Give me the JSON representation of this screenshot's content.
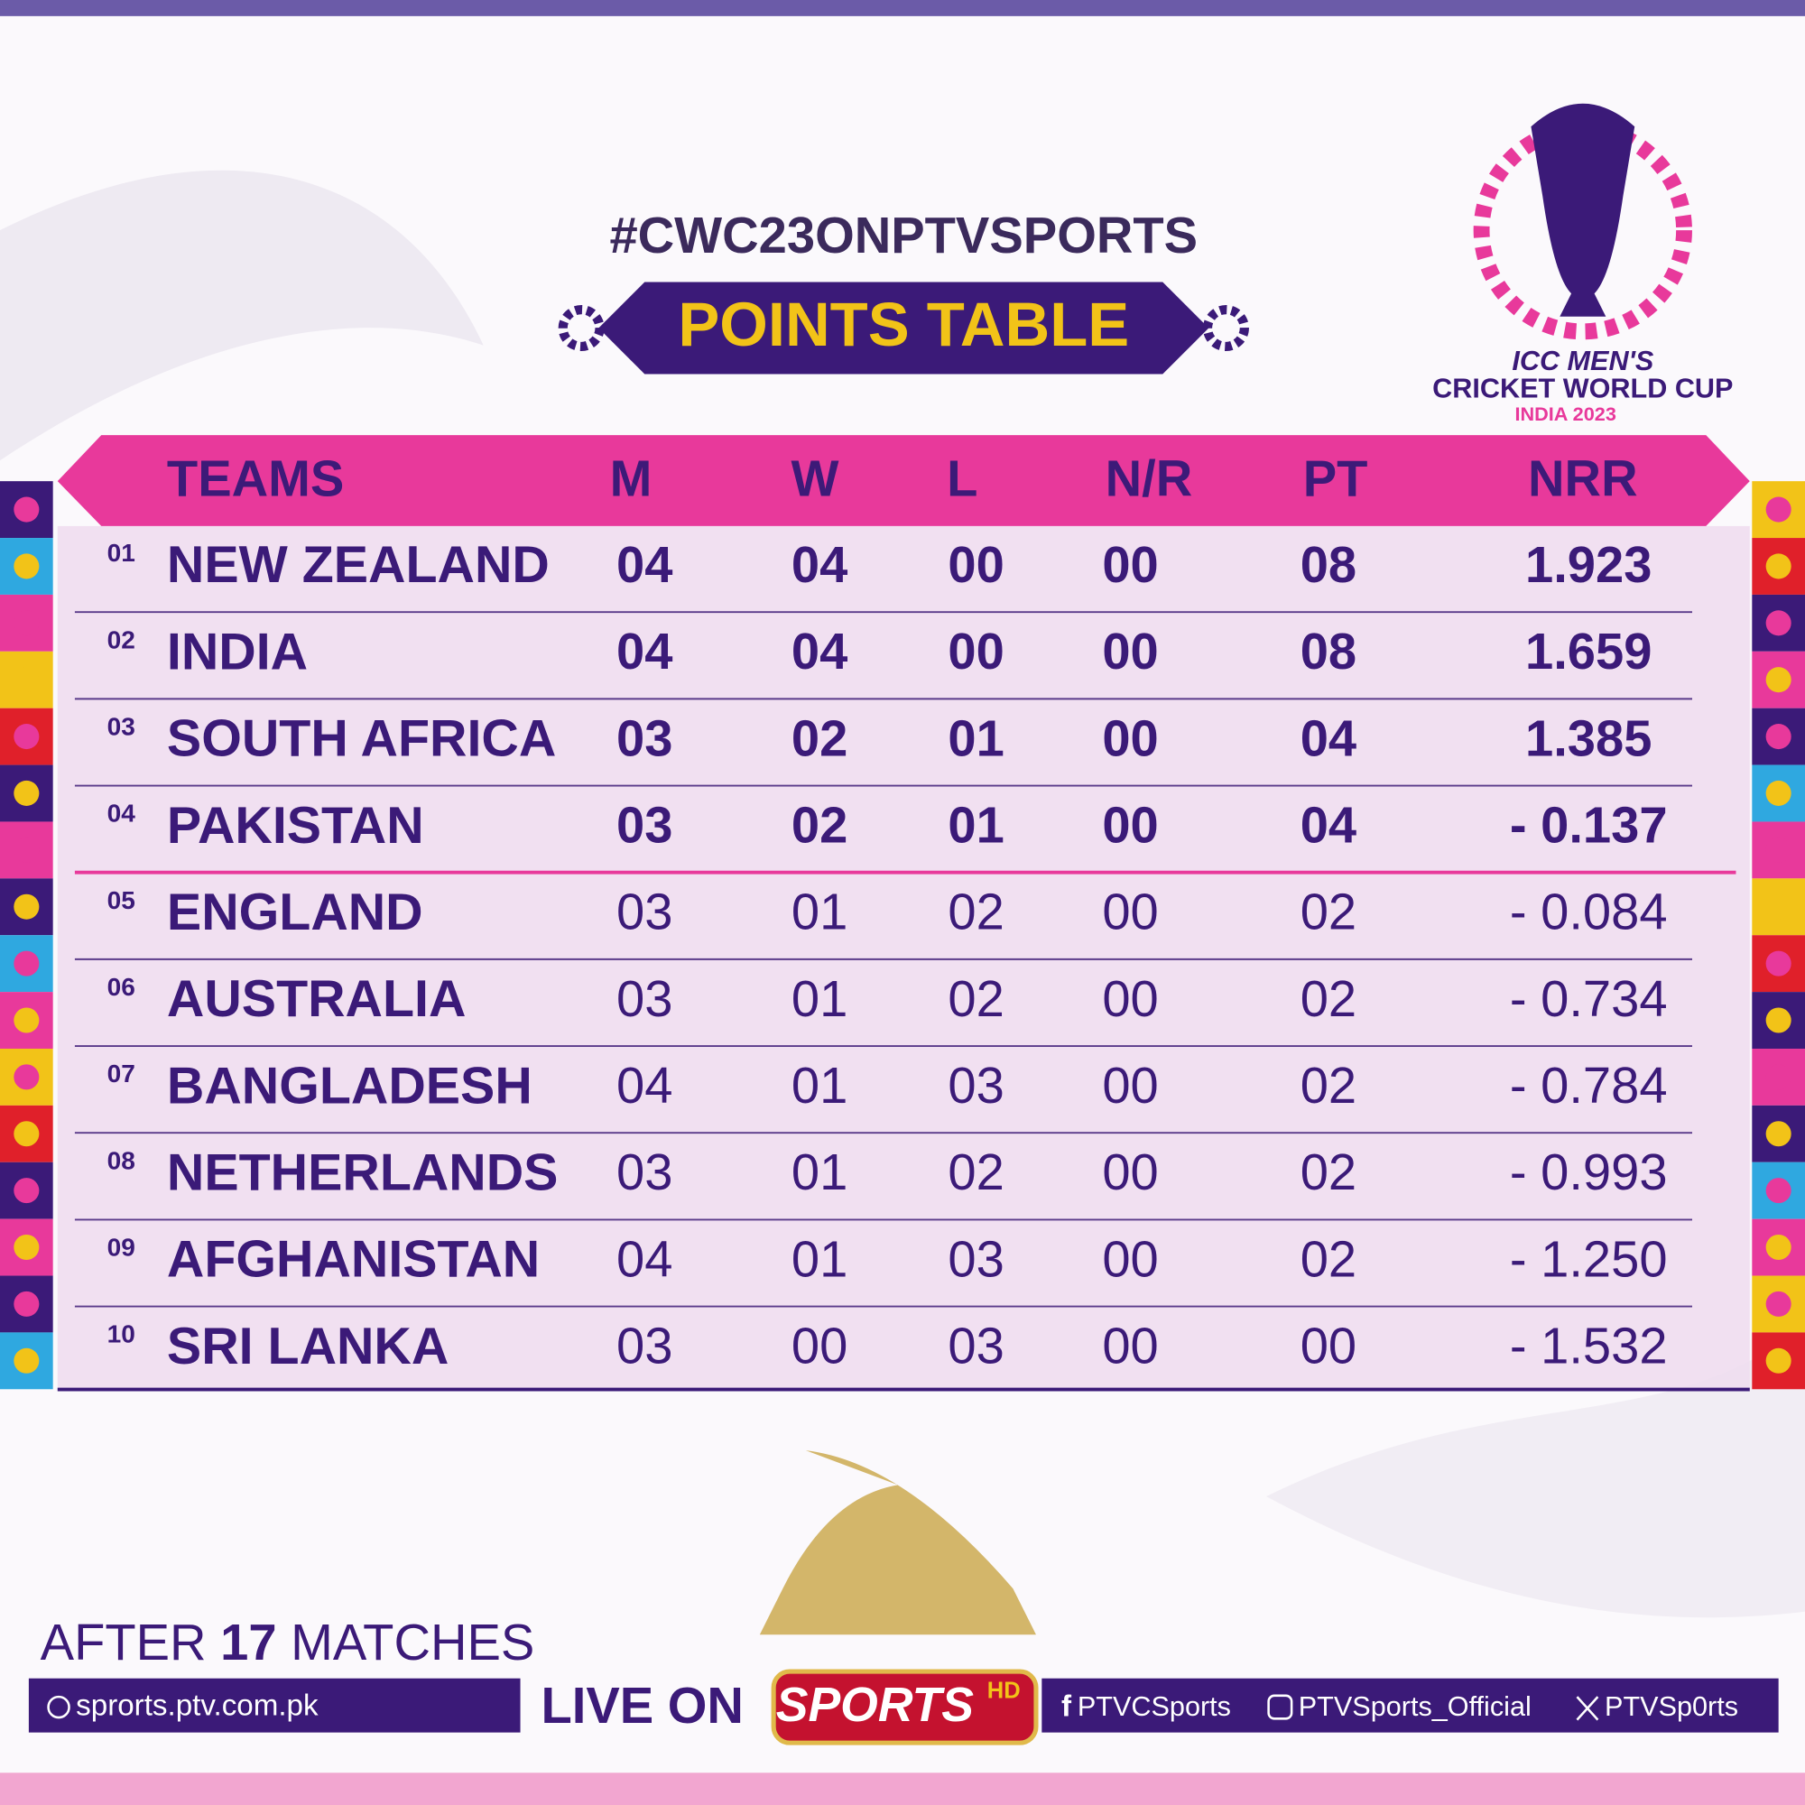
{
  "hashtag": "#CWC23ONPTVSPORTS",
  "title": "POINTS TABLE",
  "logo": {
    "line1": "ICC MEN'S",
    "line2": "CRICKET WORLD CUP",
    "line3": "INDIA 2023"
  },
  "table": {
    "header": [
      "TEAMS",
      "M",
      "W",
      "L",
      "N/R",
      "PT",
      "NRR"
    ],
    "rows": [
      [
        "01",
        "NEW ZEALAND",
        "04",
        "04",
        "00",
        "00",
        "08",
        "1.923"
      ],
      [
        "02",
        "INDIA",
        "04",
        "04",
        "00",
        "00",
        "08",
        "1.659"
      ],
      [
        "03",
        "SOUTH AFRICA",
        "03",
        "02",
        "01",
        "00",
        "04",
        "1.385"
      ],
      [
        "04",
        "PAKISTAN",
        "03",
        "02",
        "01",
        "00",
        "04",
        "- 0.137"
      ],
      [
        "05",
        "ENGLAND",
        "03",
        "01",
        "02",
        "00",
        "02",
        "- 0.084"
      ],
      [
        "06",
        "AUSTRALIA",
        "03",
        "01",
        "02",
        "00",
        "02",
        "- 0.734"
      ],
      [
        "07",
        "BANGLADESH",
        "04",
        "01",
        "03",
        "00",
        "02",
        "- 0.784"
      ],
      [
        "08",
        "NETHERLANDS",
        "03",
        "01",
        "02",
        "00",
        "02",
        "- 0.993"
      ],
      [
        "09",
        "AFGHANISTAN",
        "04",
        "01",
        "03",
        "00",
        "02",
        "- 1.250"
      ],
      [
        "10",
        "SRI LANKA",
        "03",
        "00",
        "03",
        "00",
        "00",
        "- 1.532"
      ]
    ]
  },
  "footer": {
    "after": "AFTER",
    "matches_count": "17",
    "matches": "MATCHES",
    "website": "sprorts.ptv.com.pk",
    "live_on": "LIVE ON",
    "channel": "SPORTS",
    "channel_hd": "HD",
    "facebook": "PTVCSports",
    "instagram": "PTVSports_Official",
    "x": "PTVSp0rts"
  }
}
